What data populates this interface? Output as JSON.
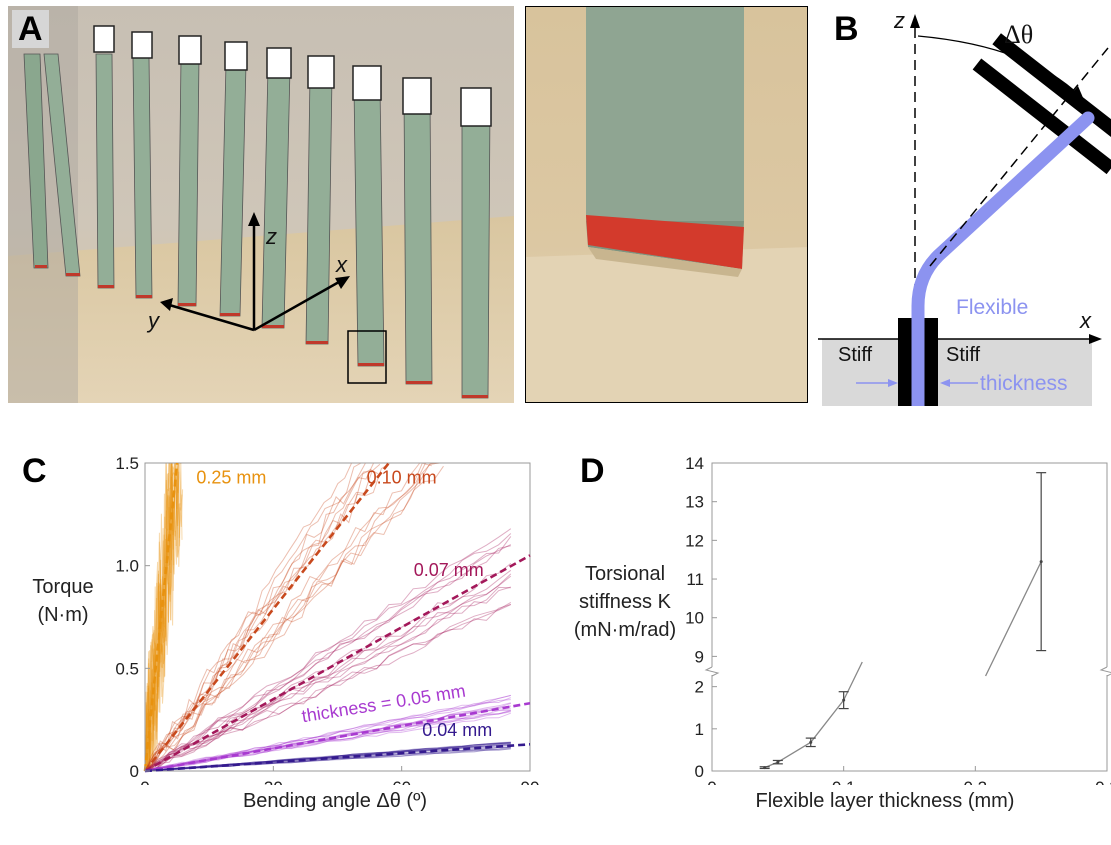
{
  "panels": {
    "a": "A",
    "b": "B",
    "c": "C",
    "d": "D"
  },
  "panel_a": {
    "axis_z": "z",
    "axis_x": "x",
    "axis_y": "y"
  },
  "panel_b": {
    "axis_z": "z",
    "axis_x": "x",
    "angle": "Δθ",
    "flexible": "Flexible",
    "stiff_left": "Stiff",
    "stiff_right": "Stiff",
    "thickness": "thickness",
    "colors": {
      "flexible": "#8c93f0",
      "stiff": "#000000",
      "base": "#d9d9d9"
    }
  },
  "chart_data": [
    {
      "panel": "C",
      "type": "line",
      "xlabel": "Bending angle Δθ (º)",
      "ylabel": "Torque (N·m)",
      "xlim": [
        0,
        90
      ],
      "ylim": [
        0,
        1.5
      ],
      "xticks": [
        "0",
        "30",
        "60",
        "90"
      ],
      "yticks": [
        "0",
        "0.5",
        "1.0",
        "1.5"
      ],
      "series": [
        {
          "name": "0.25 mm",
          "color": "#e8920f",
          "fit": [
            [
              0,
              0
            ],
            [
              7.5,
              1.5
            ]
          ]
        },
        {
          "name": "0.10 mm",
          "color": "#c8491d",
          "fit": [
            [
              0,
              0
            ],
            [
              57,
              1.5
            ]
          ]
        },
        {
          "name": "0.07 mm",
          "color": "#a3185a",
          "fit": [
            [
              0,
              0
            ],
            [
              90,
              1.05
            ]
          ]
        },
        {
          "name": "thickness  = 0.05 mm",
          "color": "#a83ad0",
          "fit": [
            [
              0,
              0
            ],
            [
              90,
              0.33
            ]
          ]
        },
        {
          "name": "0.04 mm",
          "color": "#341a8e",
          "fit": [
            [
              0,
              0
            ],
            [
              90,
              0.13
            ]
          ]
        }
      ]
    },
    {
      "panel": "D",
      "type": "line",
      "xlabel": "Flexible layer thickness (mm)",
      "ylabel": "Torsional stiffness K (mN·m/rad)",
      "ylabel_lines": [
        "Torsional",
        "stiffness K",
        "(mN·m/rad)"
      ],
      "xlim": [
        0,
        0.3
      ],
      "xticks": [
        "0",
        "0.1",
        "0.2",
        "0.3"
      ],
      "yticks_lower": [
        "0",
        "1",
        "2"
      ],
      "yticks_upper": [
        "9",
        "10",
        "11",
        "12",
        "13",
        "14"
      ],
      "y_break": [
        2.3,
        8.7
      ],
      "points": [
        {
          "x": 0.04,
          "y": 0.08,
          "err": 0.02
        },
        {
          "x": 0.05,
          "y": 0.21,
          "err": 0.04
        },
        {
          "x": 0.075,
          "y": 0.68,
          "err": 0.1
        },
        {
          "x": 0.1,
          "y": 1.68,
          "err": 0.2
        },
        {
          "x": 0.25,
          "y": 11.45,
          "err": 2.3
        }
      ]
    }
  ]
}
